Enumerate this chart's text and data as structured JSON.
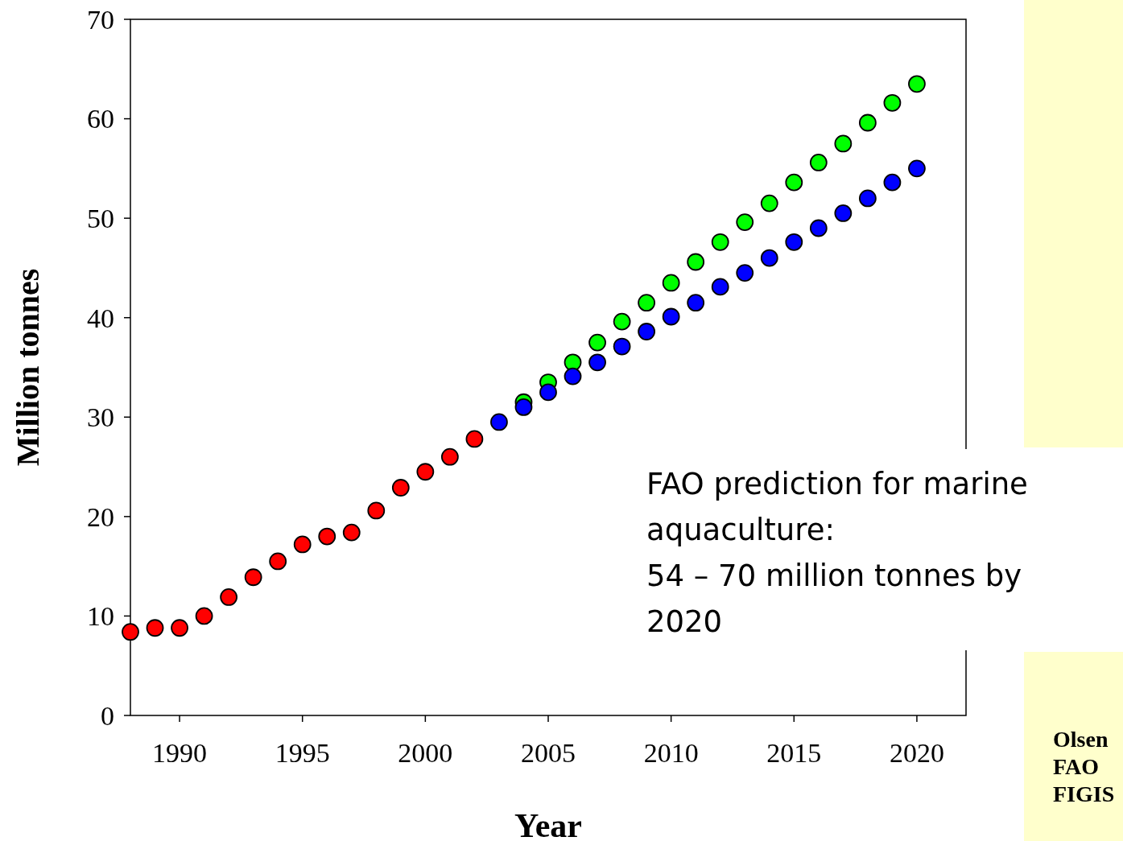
{
  "chart_data": {
    "type": "scatter",
    "xlabel": "Year",
    "ylabel": "Million tonnes",
    "xlim": [
      1988,
      2022
    ],
    "xticks": [
      1990,
      1995,
      2000,
      2005,
      2010,
      2015,
      2020
    ],
    "ylim": [
      0,
      70
    ],
    "yticks": [
      0,
      10,
      20,
      30,
      40,
      50,
      60,
      70
    ],
    "grid": false,
    "marker": "circle",
    "series": [
      {
        "color": "#ff0000",
        "x": [
          1988,
          1989,
          1990,
          1991,
          1992,
          1993,
          1994,
          1995,
          1996,
          1997,
          1998,
          1999,
          2000,
          2001,
          2002
        ],
        "values": [
          8.4,
          8.8,
          8.8,
          10.0,
          11.9,
          13.9,
          15.5,
          17.2,
          18.0,
          18.4,
          20.6,
          22.9,
          24.5,
          26.0,
          27.8
        ]
      },
      {
        "color": "#00ff00",
        "x": [
          2004,
          2005,
          2006,
          2007,
          2008,
          2009,
          2010,
          2011,
          2012,
          2013,
          2014,
          2015,
          2016,
          2017,
          2018,
          2019,
          2020
        ],
        "values": [
          31.5,
          33.5,
          35.5,
          37.5,
          39.6,
          41.5,
          43.5,
          45.6,
          47.6,
          49.6,
          51.5,
          53.6,
          55.6,
          57.5,
          59.6,
          61.6,
          63.5
        ]
      },
      {
        "color": "#0000ff",
        "x": [
          2003,
          2004,
          2005,
          2006,
          2007,
          2008,
          2009,
          2010,
          2011,
          2012,
          2013,
          2014,
          2015,
          2016,
          2017,
          2018,
          2019,
          2020
        ],
        "values": [
          29.5,
          31.0,
          32.5,
          34.1,
          35.5,
          37.1,
          38.6,
          40.1,
          41.5,
          43.1,
          44.5,
          46.0,
          47.6,
          49.0,
          50.5,
          52.0,
          53.6,
          55.0
        ]
      }
    ],
    "annotations": [
      "FAO prediction for marine aquaculture:\n54 – 70 million tonnes by 2020",
      "Olsen\nFAO\nFIGIS"
    ]
  }
}
